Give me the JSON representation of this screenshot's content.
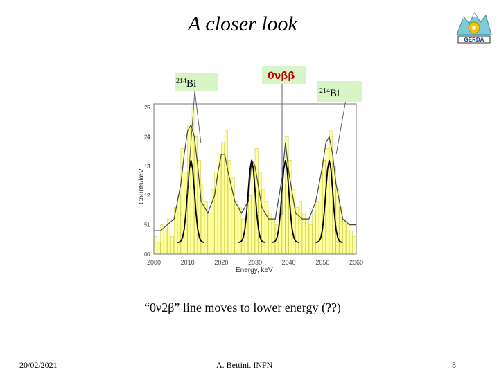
{
  "slide": {
    "title": "A closer look",
    "caption": "“0ν2β” line moves to lower energy (??)",
    "date": "20/02/2021",
    "author": "A. Bettini. INFN",
    "page_number": "8",
    "logo_text": "GERDA"
  },
  "annotations": {
    "left_bi": "214Bi",
    "center_peak": "0νββ",
    "right_bi": "214Bi",
    "left_bi_mass": "214",
    "left_bi_sym": "Bi",
    "right_bi_mass": "214",
    "right_bi_sym": "Bi"
  },
  "colors": {
    "bars": "#ffff66",
    "label_box": "#d8f5c8",
    "center_label": "#c80000"
  },
  "chart_data": {
    "type": "bar",
    "title": "",
    "xlabel": "Energy, keV",
    "ylabel": "Counts/keV",
    "xlim": [
      2000,
      2060
    ],
    "ylim": [
      0,
      25
    ],
    "x_ticks": [
      "2000",
      "2010",
      "2020",
      "2030",
      "2040",
      "2050",
      "2060"
    ],
    "y_ticks": [
      "0",
      "5",
      "10",
      "15",
      "20",
      "25"
    ],
    "y_ticks_secondary": [
      "0",
      "1",
      "2",
      "3",
      "4",
      "5"
    ],
    "peaks_keV": [
      2011,
      2029,
      2039,
      2052
    ],
    "series": [
      {
        "bin_width": 1,
        "x": [
          2000,
          2001,
          2002,
          2003,
          2004,
          2005,
          2006,
          2007,
          2008,
          2009,
          2010,
          2011,
          2012,
          2013,
          2014,
          2015,
          2016,
          2017,
          2018,
          2019,
          2020,
          2021,
          2022,
          2023,
          2024,
          2025,
          2026,
          2027,
          2028,
          2029,
          2030,
          2031,
          2032,
          2033,
          2034,
          2035,
          2036,
          2037,
          2038,
          2039,
          2040,
          2041,
          2042,
          2043,
          2044,
          2045,
          2046,
          2047,
          2048,
          2049,
          2050,
          2051,
          2052,
          2053,
          2054,
          2055,
          2056,
          2057,
          2058,
          2059
        ],
        "values": [
          3,
          2,
          5,
          4,
          6,
          3,
          8,
          10,
          18,
          14,
          22,
          25,
          20,
          16,
          12,
          9,
          7,
          11,
          14,
          17,
          19,
          21,
          16,
          13,
          9,
          8,
          6,
          7,
          10,
          15,
          18,
          14,
          11,
          9,
          7,
          6,
          5,
          8,
          12,
          20,
          16,
          11,
          8,
          9,
          7,
          6,
          5,
          7,
          9,
          13,
          16,
          18,
          21,
          15,
          11,
          8,
          6,
          5,
          4,
          3
        ]
      },
      {
        "name": "fit",
        "x": [
          2000,
          2002,
          2004,
          2006,
          2008,
          2009,
          2010,
          2011,
          2012,
          2013,
          2014,
          2016,
          2018,
          2019,
          2020,
          2021,
          2022,
          2024,
          2026,
          2028,
          2029,
          2030,
          2032,
          2034,
          2036,
          2038,
          2039,
          2040,
          2042,
          2044,
          2046,
          2048,
          2050,
          2051,
          2052,
          2053,
          2054,
          2056,
          2058,
          2060
        ],
        "values": [
          4,
          4,
          5,
          6,
          12,
          17,
          21,
          22,
          20,
          15,
          9,
          7,
          10,
          14,
          17,
          17,
          14,
          9,
          7,
          9,
          16,
          15,
          8,
          6,
          6,
          13,
          19,
          14,
          7,
          6,
          6,
          9,
          15,
          19,
          20,
          17,
          12,
          6,
          5,
          5
        ]
      }
    ],
    "grid": false,
    "legend": "none"
  }
}
